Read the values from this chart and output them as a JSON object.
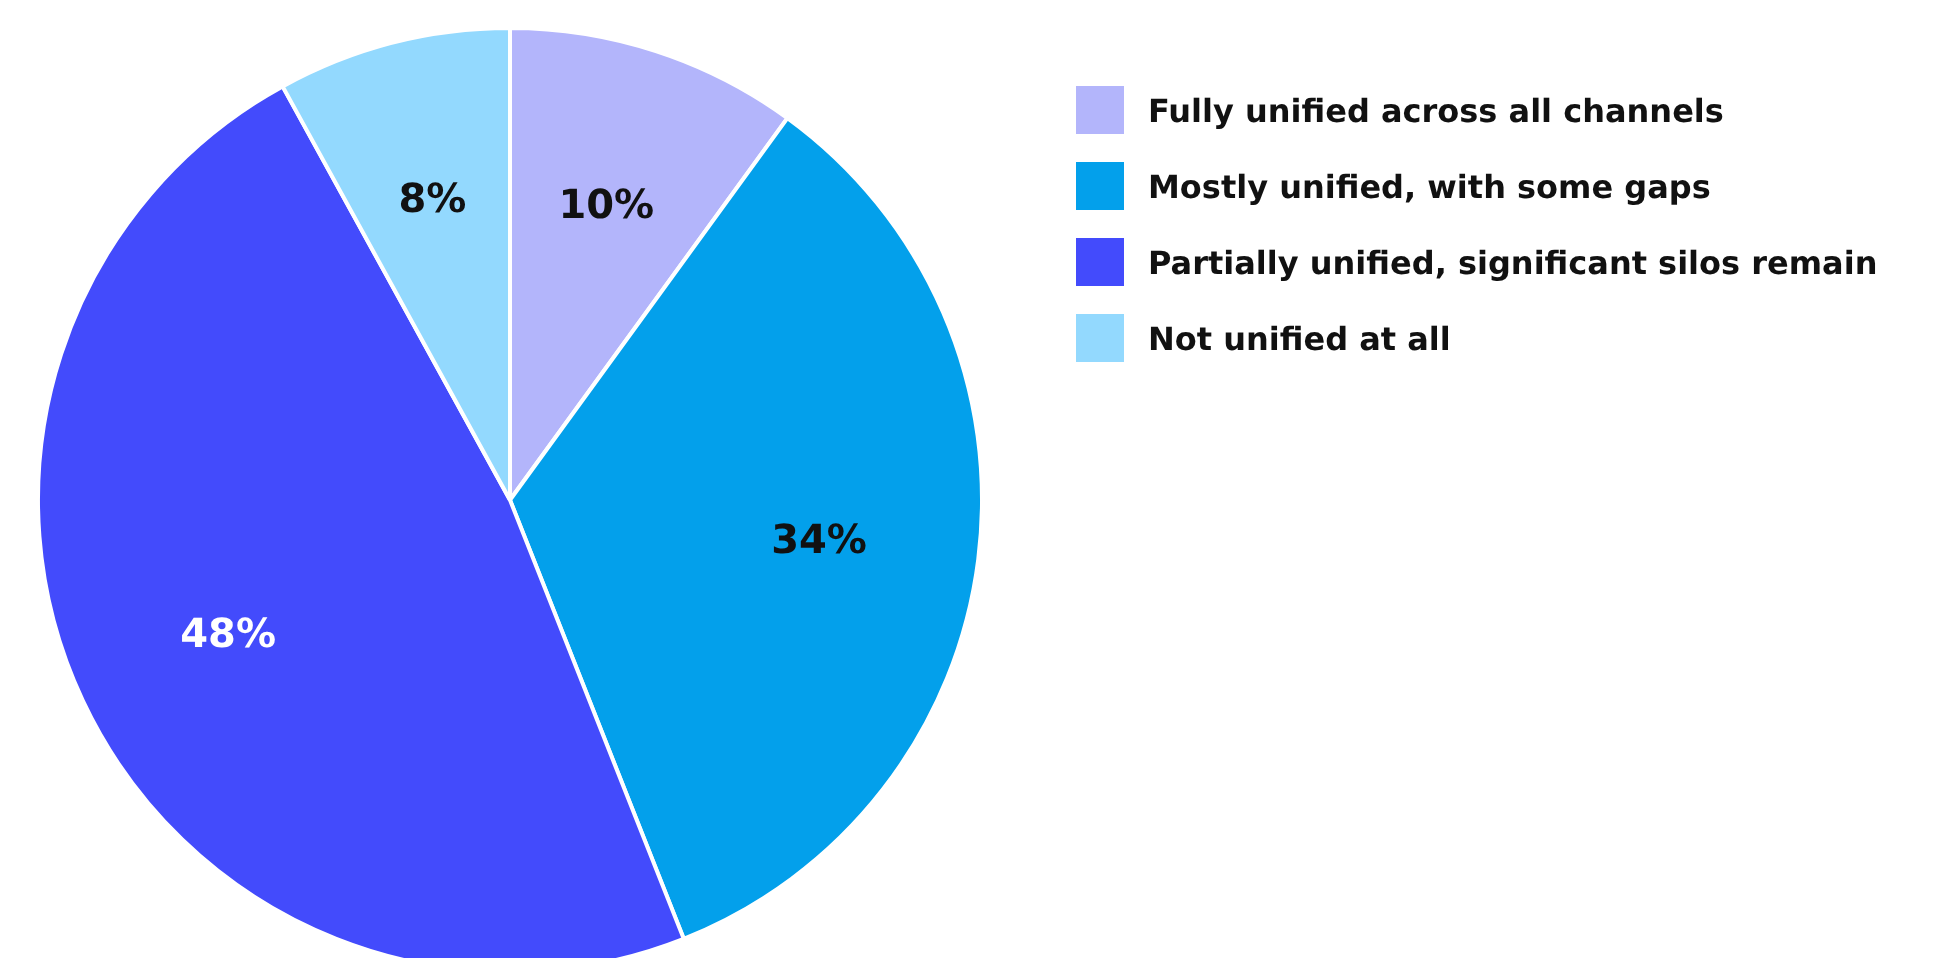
{
  "chart_data": {
    "type": "pie",
    "categories": [
      "Fully unified across all channels",
      "Mostly unified, with some gaps",
      "Partially unified, significant silos remain",
      "Not unified at all"
    ],
    "values": [
      10,
      34,
      48,
      8
    ],
    "colors": [
      "#b3b5fb",
      "#03a0eb",
      "#434bfc",
      "#93d9fe"
    ],
    "value_labels": [
      "10%",
      "34%",
      "48%",
      "8%"
    ],
    "legend": "top right"
  }
}
